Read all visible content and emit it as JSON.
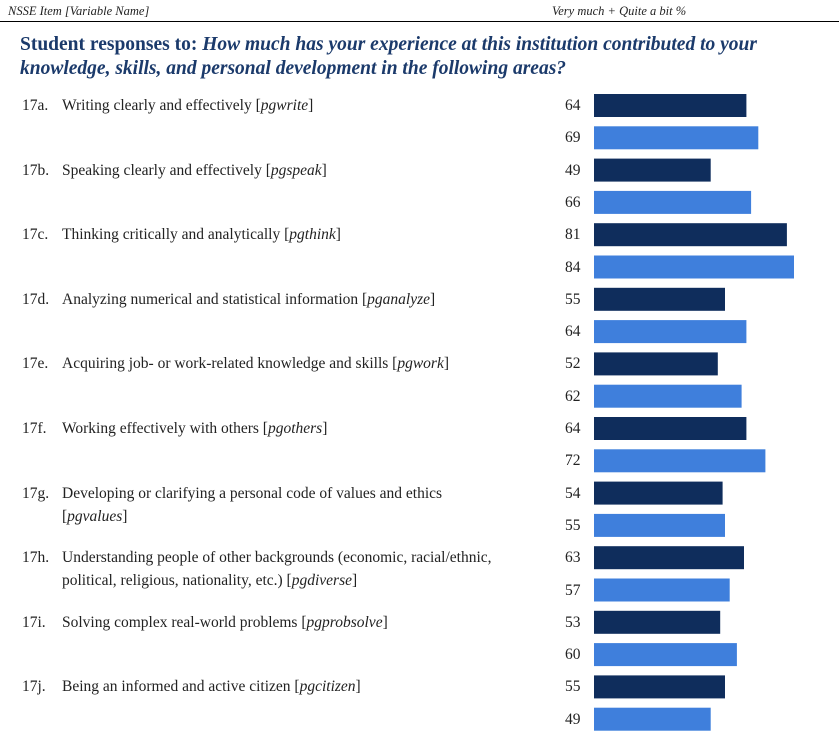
{
  "header": {
    "left": "NSSE Item [Variable Name]",
    "right": "Very much + Quite a bit %"
  },
  "title": {
    "prefix": "Student responses to: ",
    "question": "How much has your experience at this institution contributed to your knowledge, skills, and personal development in the following areas?"
  },
  "colors": {
    "dark": "#0f2d5c",
    "light": "#3f7fdc"
  },
  "chart_data": {
    "type": "bar",
    "orientation": "horizontal",
    "xlim": [
      0,
      100
    ],
    "series": [
      {
        "values": [
          64,
          49,
          81,
          55,
          52,
          64,
          54,
          63,
          53,
          55
        ]
      },
      {
        "values": [
          69,
          66,
          84,
          64,
          62,
          72,
          55,
          57,
          60,
          49
        ]
      }
    ],
    "categories": [
      {
        "num": "17a.",
        "text": "Writing clearly and effectively [",
        "var": "pgwrite",
        "close": "]"
      },
      {
        "num": "17b.",
        "text": "Speaking clearly and effectively [",
        "var": "pgspeak",
        "close": "]"
      },
      {
        "num": "17c.",
        "text": "Thinking critically and analytically [",
        "var": "pgthink",
        "close": "]"
      },
      {
        "num": "17d.",
        "text": "Analyzing numerical and statistical information [",
        "var": "pganalyze",
        "close": "]"
      },
      {
        "num": "17e.",
        "text": "Acquiring job- or work-related knowledge and skills [",
        "var": "pgwork",
        "close": "]"
      },
      {
        "num": "17f.",
        "text": "Working effectively with others [",
        "var": "pgothers",
        "close": "]"
      },
      {
        "num": "17g.",
        "text": "Developing or clarifying a personal code of values and ethics [",
        "var": "pgvalues",
        "close": "]"
      },
      {
        "num": "17h.",
        "text": "Understanding people of other backgrounds (economic, racial/ethnic, political, religious, nationality, etc.) [",
        "var": "pgdiverse",
        "close": "]"
      },
      {
        "num": "17i.",
        "text": "Solving complex real-world problems [",
        "var": "pgprobsolve",
        "close": "]"
      },
      {
        "num": "17j.",
        "text": "Being an informed and active citizen [",
        "var": "pgcitizen",
        "close": "]"
      }
    ]
  }
}
